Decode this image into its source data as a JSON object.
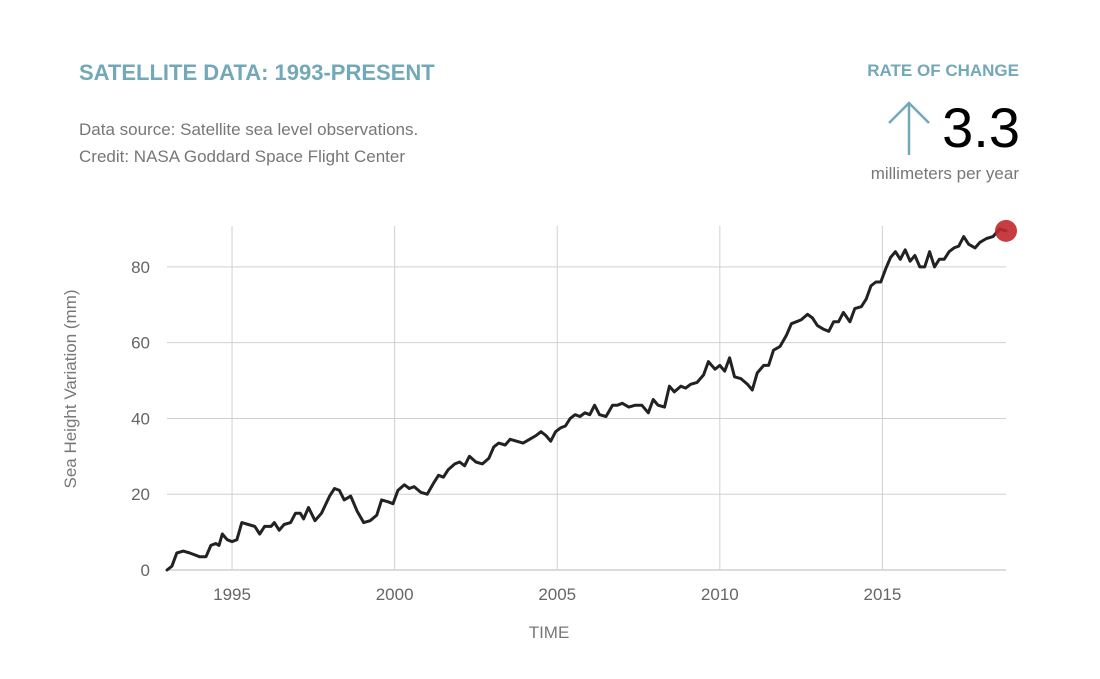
{
  "header": {
    "title": "SATELLITE DATA: 1993-PRESENT",
    "source_line": "Data source: Satellite sea level observations.",
    "credit_line": "Credit: NASA Goddard Space Flight Center"
  },
  "rate": {
    "label": "RATE OF CHANGE",
    "direction_icon": "arrow-up-icon",
    "value": "3.3",
    "unit": "millimeters per year"
  },
  "colors": {
    "accent": "#72a8b8",
    "line": "#222222",
    "marker": "#c0282d",
    "grid": "#d0d0d0",
    "muted_text": "#777777"
  },
  "chart_data": {
    "type": "line",
    "title": "SATELLITE DATA: 1993-PRESENT",
    "xlabel": "TIME",
    "ylabel": "Sea Height Variation (mm)",
    "xlim": [
      1993.0,
      2018.8
    ],
    "ylim": [
      0,
      90
    ],
    "xticks": [
      1995,
      2000,
      2005,
      2010,
      2015
    ],
    "yticks": [
      0,
      20,
      40,
      60,
      80
    ],
    "grid": true,
    "legend": "none",
    "end_marker": {
      "x": 2018.8,
      "y": 89.5
    },
    "series": [
      {
        "name": "Sea Height Variation",
        "x": [
          1993.0,
          1993.15,
          1993.3,
          1993.5,
          1993.7,
          1994.0,
          1994.2,
          1994.35,
          1994.5,
          1994.6,
          1994.7,
          1994.85,
          1995.0,
          1995.15,
          1995.3,
          1995.5,
          1995.7,
          1995.85,
          1996.0,
          1996.2,
          1996.3,
          1996.45,
          1996.6,
          1996.8,
          1996.95,
          1997.1,
          1997.2,
          1997.35,
          1997.55,
          1997.75,
          1998.0,
          1998.15,
          1998.3,
          1998.45,
          1998.65,
          1998.85,
          1999.05,
          1999.25,
          1999.45,
          1999.6,
          1999.8,
          1999.95,
          2000.1,
          2000.3,
          2000.45,
          2000.6,
          2000.8,
          2001.0,
          2001.2,
          2001.35,
          2001.5,
          2001.65,
          2001.85,
          2002.0,
          2002.15,
          2002.3,
          2002.5,
          2002.7,
          2002.9,
          2003.05,
          2003.2,
          2003.4,
          2003.55,
          2003.75,
          2003.95,
          2004.15,
          2004.35,
          2004.5,
          2004.65,
          2004.8,
          2004.95,
          2005.1,
          2005.25,
          2005.4,
          2005.55,
          2005.7,
          2005.85,
          2006.0,
          2006.15,
          2006.3,
          2006.5,
          2006.7,
          2006.85,
          2007.0,
          2007.2,
          2007.4,
          2007.6,
          2007.8,
          2007.95,
          2008.1,
          2008.3,
          2008.45,
          2008.6,
          2008.8,
          2008.95,
          2009.1,
          2009.3,
          2009.5,
          2009.65,
          2009.85,
          2010.0,
          2010.15,
          2010.3,
          2010.45,
          2010.65,
          2010.85,
          2011.0,
          2011.15,
          2011.35,
          2011.5,
          2011.65,
          2011.85,
          2012.05,
          2012.2,
          2012.35,
          2012.5,
          2012.7,
          2012.85,
          2013.0,
          2013.2,
          2013.35,
          2013.5,
          2013.65,
          2013.8,
          2014.0,
          2014.15,
          2014.35,
          2014.5,
          2014.65,
          2014.8,
          2014.95,
          2015.1,
          2015.25,
          2015.4,
          2015.55,
          2015.7,
          2015.85,
          2016.0,
          2016.15,
          2016.3,
          2016.45,
          2016.6,
          2016.75,
          2016.9,
          2017.05,
          2017.2,
          2017.35,
          2017.5,
          2017.65,
          2017.85,
          2018.0,
          2018.2,
          2018.4,
          2018.6,
          2018.8
        ],
        "values": [
          0,
          1,
          4.5,
          5,
          4.5,
          3.5,
          3.5,
          6.5,
          7,
          6.5,
          9.5,
          8,
          7.5,
          8,
          12.5,
          12,
          11.5,
          9.5,
          11.5,
          11.5,
          12.5,
          10.5,
          12,
          12.5,
          15,
          15,
          13.5,
          16.5,
          13,
          15,
          19.5,
          21.5,
          21,
          18.5,
          19.5,
          15.5,
          12.5,
          13,
          14.5,
          18.5,
          18,
          17.5,
          21,
          22.5,
          21.5,
          22,
          20.5,
          20,
          23,
          25,
          24.5,
          26.5,
          28,
          28.5,
          27.5,
          30,
          28.5,
          28,
          29.5,
          32.5,
          33.5,
          33,
          34.5,
          34,
          33.5,
          34.5,
          35.5,
          36.5,
          35.5,
          34,
          36.5,
          37.5,
          38,
          40,
          41,
          40.5,
          41.5,
          41,
          43.5,
          41,
          40.5,
          43.5,
          43.5,
          44,
          43,
          43.5,
          43.5,
          41.5,
          45,
          43.5,
          43,
          48.5,
          47,
          48.5,
          48,
          49,
          49.5,
          51.5,
          55,
          53,
          54,
          52.5,
          56,
          51,
          50.5,
          49,
          47.5,
          52,
          54,
          54,
          58,
          59,
          62,
          65,
          65.5,
          66,
          67.5,
          66.5,
          64.5,
          63.5,
          63,
          65.5,
          65.5,
          68,
          65.5,
          69,
          69.5,
          71.5,
          75,
          76,
          76,
          79.5,
          82.5,
          84,
          82,
          84.5,
          81.5,
          83,
          80,
          80,
          84,
          80,
          82,
          82,
          84,
          85,
          85.5,
          88,
          86,
          85,
          86.5,
          87.5,
          88,
          90,
          89.5
        ]
      }
    ]
  }
}
